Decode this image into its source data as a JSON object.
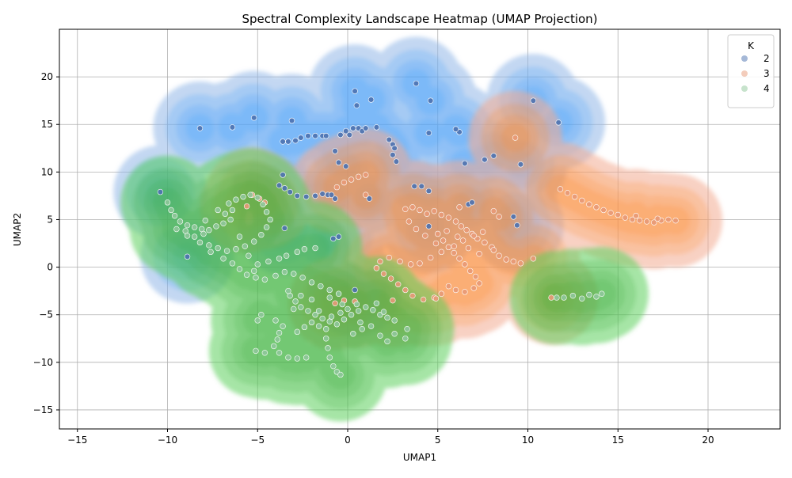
{
  "chart_data": {
    "type": "scatter",
    "title": "Spectral Complexity Landscape Heatmap (UMAP Projection)",
    "xlabel": "UMAP1",
    "ylabel": "UMAP2",
    "xlim": [
      -16,
      24
    ],
    "ylim": [
      -17,
      25
    ],
    "xticks": [
      -15,
      -10,
      -5,
      0,
      5,
      10,
      15,
      20
    ],
    "yticks": [
      -15,
      -10,
      -5,
      0,
      5,
      10,
      15,
      20
    ],
    "grid": true,
    "legend": {
      "title": "K",
      "placement": "top-right",
      "entries": [
        "2",
        "3",
        "4"
      ]
    },
    "series": [
      {
        "name": "2",
        "color": "#4c72b0",
        "density_color": "#1e90ff",
        "points": [
          [
            -10.4,
            7.9
          ],
          [
            -8.9,
            1.1
          ],
          [
            -8.2,
            14.6
          ],
          [
            -6.4,
            14.7
          ],
          [
            -5.2,
            15.7
          ],
          [
            -3.6,
            9.7
          ],
          [
            -3.6,
            13.2
          ],
          [
            -3.3,
            13.2
          ],
          [
            -3.1,
            15.4
          ],
          [
            -2.9,
            13.3
          ],
          [
            -2.6,
            13.6
          ],
          [
            -2.2,
            13.8
          ],
          [
            -1.8,
            13.8
          ],
          [
            -1.4,
            13.8
          ],
          [
            -1.2,
            13.8
          ],
          [
            -0.7,
            12.2
          ],
          [
            -0.4,
            13.9
          ],
          [
            -0.1,
            14.3
          ],
          [
            0.1,
            13.9
          ],
          [
            0.3,
            14.6
          ],
          [
            0.6,
            14.6
          ],
          [
            0.8,
            14.3
          ],
          [
            0.4,
            18.5
          ],
          [
            0.5,
            17.0
          ],
          [
            1.3,
            17.6
          ],
          [
            1.6,
            14.7
          ],
          [
            2.3,
            13.4
          ],
          [
            2.5,
            12.9
          ],
          [
            2.6,
            12.5
          ],
          [
            2.5,
            11.8
          ],
          [
            2.7,
            11.1
          ],
          [
            3.8,
            19.3
          ],
          [
            4.6,
            17.5
          ],
          [
            4.5,
            14.1
          ],
          [
            6.2,
            14.2
          ],
          [
            6.5,
            10.9
          ],
          [
            7.6,
            11.3
          ],
          [
            8.1,
            11.7
          ],
          [
            9.6,
            10.8
          ],
          [
            10.3,
            17.5
          ],
          [
            11.7,
            15.2
          ],
          [
            -0.5,
            11.0
          ],
          [
            -3.8,
            8.6
          ],
          [
            -3.5,
            8.3
          ],
          [
            -3.2,
            7.9
          ],
          [
            -2.8,
            7.5
          ],
          [
            -2.3,
            7.4
          ],
          [
            -1.8,
            7.5
          ],
          [
            -1.4,
            7.7
          ],
          [
            -1.1,
            7.6
          ],
          [
            -0.9,
            7.6
          ],
          [
            -0.7,
            7.2
          ],
          [
            1.2,
            7.2
          ],
          [
            3.7,
            8.5
          ],
          [
            4.1,
            8.5
          ],
          [
            4.5,
            8.0
          ],
          [
            6.7,
            6.6
          ],
          [
            6.9,
            6.8
          ],
          [
            9.2,
            5.3
          ],
          [
            9.4,
            4.4
          ],
          [
            4.5,
            4.3
          ],
          [
            -3.5,
            4.1
          ],
          [
            -0.8,
            3.0
          ],
          [
            -0.5,
            3.2
          ],
          [
            0.4,
            -2.4
          ],
          [
            -0.1,
            10.6
          ],
          [
            1.0,
            14.6
          ],
          [
            6.0,
            14.5
          ]
        ]
      },
      {
        "name": "3",
        "color": "#e89a78",
        "density_color": "#ff7f0e",
        "points": [
          [
            -0.6,
            8.4
          ],
          [
            -0.2,
            8.9
          ],
          [
            0.2,
            9.2
          ],
          [
            0.6,
            9.5
          ],
          [
            1.0,
            9.7
          ],
          [
            3.2,
            6.1
          ],
          [
            3.6,
            6.3
          ],
          [
            4.0,
            6.0
          ],
          [
            4.4,
            5.6
          ],
          [
            4.8,
            5.9
          ],
          [
            5.2,
            5.5
          ],
          [
            5.6,
            5.2
          ],
          [
            6.0,
            4.8
          ],
          [
            6.3,
            4.3
          ],
          [
            6.6,
            3.9
          ],
          [
            6.9,
            3.5
          ],
          [
            7.2,
            3.0
          ],
          [
            7.6,
            2.6
          ],
          [
            8.0,
            2.1
          ],
          [
            8.4,
            1.2
          ],
          [
            8.8,
            0.8
          ],
          [
            9.2,
            0.6
          ],
          [
            9.6,
            0.4
          ],
          [
            10.3,
            0.9
          ],
          [
            5.0,
            3.5
          ],
          [
            5.3,
            2.8
          ],
          [
            5.6,
            2.1
          ],
          [
            5.9,
            1.5
          ],
          [
            6.2,
            0.9
          ],
          [
            6.5,
            0.3
          ],
          [
            6.8,
            -0.4
          ],
          [
            7.1,
            -1.0
          ],
          [
            7.3,
            -1.7
          ],
          [
            7.0,
            -2.2
          ],
          [
            6.5,
            -2.6
          ],
          [
            6.0,
            -2.4
          ],
          [
            5.6,
            -2.0
          ],
          [
            5.2,
            -2.8
          ],
          [
            4.8,
            -3.2
          ],
          [
            4.2,
            -3.4
          ],
          [
            3.6,
            -3.0
          ],
          [
            3.2,
            -2.4
          ],
          [
            2.8,
            -1.8
          ],
          [
            2.4,
            -1.2
          ],
          [
            2.0,
            -0.7
          ],
          [
            1.6,
            -0.1
          ],
          [
            1.8,
            0.6
          ],
          [
            2.3,
            1.0
          ],
          [
            2.9,
            0.6
          ],
          [
            3.5,
            0.3
          ],
          [
            4.0,
            0.4
          ],
          [
            4.6,
            1.0
          ],
          [
            5.2,
            1.6
          ],
          [
            5.9,
            2.2
          ],
          [
            6.4,
            2.8
          ],
          [
            7.0,
            3.3
          ],
          [
            7.5,
            3.7
          ],
          [
            3.4,
            4.8
          ],
          [
            3.8,
            4.0
          ],
          [
            4.3,
            3.3
          ],
          [
            4.9,
            2.5
          ],
          [
            5.5,
            3.8
          ],
          [
            6.1,
            3.2
          ],
          [
            6.7,
            2.0
          ],
          [
            7.3,
            1.4
          ],
          [
            8.1,
            1.8
          ],
          [
            8.1,
            5.9
          ],
          [
            8.4,
            5.3
          ],
          [
            6.2,
            6.3
          ],
          [
            11.8,
            8.2
          ],
          [
            12.2,
            7.8
          ],
          [
            12.6,
            7.4
          ],
          [
            13.0,
            7.0
          ],
          [
            13.4,
            6.6
          ],
          [
            13.8,
            6.3
          ],
          [
            14.2,
            6.0
          ],
          [
            14.6,
            5.7
          ],
          [
            15.0,
            5.5
          ],
          [
            15.4,
            5.2
          ],
          [
            15.8,
            5.0
          ],
          [
            16.2,
            4.9
          ],
          [
            16.6,
            4.8
          ],
          [
            17.0,
            4.7
          ],
          [
            17.4,
            4.9
          ],
          [
            17.8,
            5.0
          ],
          [
            18.2,
            4.9
          ],
          [
            16.0,
            5.4
          ],
          [
            17.2,
            5.1
          ],
          [
            9.3,
            13.6
          ],
          [
            11.3,
            -3.2
          ],
          [
            -5.3,
            7.6
          ],
          [
            -4.9,
            7.2
          ],
          [
            -4.6,
            6.8
          ],
          [
            -5.6,
            6.4
          ],
          [
            2.5,
            -3.5
          ],
          [
            -0.2,
            -3.5
          ],
          [
            -0.7,
            -3.8
          ],
          [
            0.4,
            -3.6
          ],
          [
            1.0,
            7.6
          ],
          [
            4.9,
            -3.3
          ]
        ]
      },
      {
        "name": "4",
        "color": "#8fc79a",
        "density_color": "#2ca02c",
        "points": [
          [
            -10.0,
            6.8
          ],
          [
            -9.8,
            6.0
          ],
          [
            -9.6,
            5.4
          ],
          [
            -9.3,
            4.8
          ],
          [
            -8.9,
            4.4
          ],
          [
            -8.5,
            4.2
          ],
          [
            -8.1,
            4.0
          ],
          [
            -7.7,
            3.9
          ],
          [
            -7.3,
            4.3
          ],
          [
            -6.9,
            4.6
          ],
          [
            -6.5,
            5.0
          ],
          [
            -6.8,
            5.6
          ],
          [
            -7.2,
            6.0
          ],
          [
            -6.6,
            6.7
          ],
          [
            -6.2,
            7.1
          ],
          [
            -5.8,
            7.4
          ],
          [
            -5.4,
            7.6
          ],
          [
            -5.0,
            7.3
          ],
          [
            -4.7,
            6.6
          ],
          [
            -4.5,
            5.8
          ],
          [
            -4.3,
            5.0
          ],
          [
            -4.5,
            4.2
          ],
          [
            -4.8,
            3.4
          ],
          [
            -5.2,
            2.7
          ],
          [
            -5.7,
            2.2
          ],
          [
            -6.2,
            1.9
          ],
          [
            -6.7,
            1.7
          ],
          [
            -7.2,
            2.0
          ],
          [
            -7.7,
            2.3
          ],
          [
            -8.2,
            2.6
          ],
          [
            -8.5,
            3.2
          ],
          [
            -8.0,
            3.5
          ],
          [
            -9.5,
            4.0
          ],
          [
            -9.0,
            3.8
          ],
          [
            -7.6,
            1.6
          ],
          [
            -6.9,
            0.9
          ],
          [
            -6.4,
            0.4
          ],
          [
            -6.0,
            -0.2
          ],
          [
            -5.6,
            -0.8
          ],
          [
            -5.1,
            -1.1
          ],
          [
            -4.6,
            -1.3
          ],
          [
            -4.0,
            -0.9
          ],
          [
            -3.5,
            -0.5
          ],
          [
            -3.0,
            -0.7
          ],
          [
            -2.5,
            -1.1
          ],
          [
            -2.0,
            -1.6
          ],
          [
            -1.5,
            -2.0
          ],
          [
            -1.0,
            -2.4
          ],
          [
            -0.5,
            -2.8
          ],
          [
            -3.8,
            0.9
          ],
          [
            -3.4,
            1.2
          ],
          [
            -2.8,
            1.6
          ],
          [
            -2.4,
            1.9
          ],
          [
            -1.8,
            2.0
          ],
          [
            -5.0,
            0.3
          ],
          [
            -4.4,
            0.6
          ],
          [
            -3.2,
            -3.0
          ],
          [
            -2.9,
            -3.6
          ],
          [
            -2.6,
            -4.2
          ],
          [
            -2.2,
            -4.6
          ],
          [
            -1.8,
            -5.0
          ],
          [
            -1.4,
            -5.4
          ],
          [
            -1.0,
            -5.7
          ],
          [
            -0.6,
            -6.0
          ],
          [
            -0.2,
            -5.5
          ],
          [
            0.2,
            -5.0
          ],
          [
            0.6,
            -4.6
          ],
          [
            1.0,
            -4.2
          ],
          [
            1.4,
            -4.5
          ],
          [
            1.8,
            -5.0
          ],
          [
            2.2,
            -5.3
          ],
          [
            2.6,
            -5.6
          ],
          [
            -4.0,
            -5.6
          ],
          [
            -3.6,
            -6.2
          ],
          [
            -3.8,
            -6.9
          ],
          [
            -3.9,
            -7.6
          ],
          [
            -4.1,
            -8.3
          ],
          [
            -3.8,
            -9.0
          ],
          [
            -3.3,
            -9.5
          ],
          [
            -2.8,
            -9.6
          ],
          [
            -2.3,
            -9.5
          ],
          [
            -4.8,
            -5.0
          ],
          [
            -5.0,
            -5.6
          ],
          [
            -4.6,
            -9.0
          ],
          [
            -5.1,
            -8.8
          ],
          [
            -1.2,
            -6.5
          ],
          [
            -1.2,
            -7.5
          ],
          [
            -1.1,
            -8.5
          ],
          [
            -1.0,
            -9.5
          ],
          [
            -0.8,
            -10.4
          ],
          [
            -0.6,
            -11.0
          ],
          [
            -0.4,
            -11.3
          ],
          [
            0.3,
            -7.0
          ],
          [
            0.8,
            -6.5
          ],
          [
            1.3,
            -6.2
          ],
          [
            1.8,
            -7.2
          ],
          [
            2.2,
            -7.8
          ],
          [
            2.6,
            -7.0
          ],
          [
            3.3,
            -6.5
          ],
          [
            3.2,
            -7.5
          ],
          [
            -2.0,
            -5.8
          ],
          [
            -2.4,
            -6.3
          ],
          [
            -2.8,
            -6.8
          ],
          [
            -1.6,
            -6.2
          ],
          [
            0.0,
            -4.4
          ],
          [
            0.5,
            -3.9
          ],
          [
            -0.4,
            -4.8
          ],
          [
            -1.0,
            -3.2
          ],
          [
            -0.3,
            -3.9
          ],
          [
            -2.0,
            -3.4
          ],
          [
            -2.6,
            -3.0
          ],
          [
            -3.3,
            -2.5
          ],
          [
            -8.9,
            3.3
          ],
          [
            -7.9,
            4.9
          ],
          [
            -6.0,
            3.2
          ],
          [
            -5.5,
            1.2
          ],
          [
            -5.2,
            -0.4
          ],
          [
            12.0,
            -3.2
          ],
          [
            12.5,
            -3.0
          ],
          [
            13.0,
            -3.3
          ],
          [
            13.4,
            -2.9
          ],
          [
            13.8,
            -3.1
          ],
          [
            14.1,
            -2.8
          ],
          [
            11.6,
            -3.2
          ],
          [
            -6.4,
            6.0
          ],
          [
            -3.0,
            -4.4
          ],
          [
            1.6,
            -3.8
          ],
          [
            -1.6,
            -4.6
          ],
          [
            -0.9,
            -5.2
          ],
          [
            2.0,
            -4.7
          ],
          [
            0.7,
            -5.8
          ]
        ]
      }
    ]
  }
}
